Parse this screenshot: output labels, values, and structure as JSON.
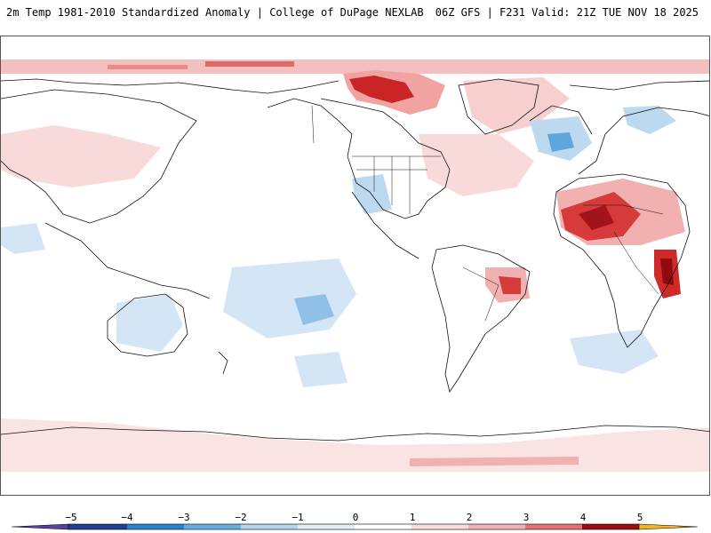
{
  "header": {
    "title_left": "2m Temp 1981-2010 Standardized Anomaly | College of DuPage NEXLAB",
    "title_right": "06Z GFS | F231 Valid: 21Z TUE NOV 18 2025"
  },
  "colorbar": {
    "labels": [
      "−5",
      "−4",
      "−3",
      "−2",
      "−1",
      "0",
      "1",
      "2",
      "3",
      "4",
      "5"
    ],
    "colors": [
      "#5b3f9e",
      "#1f3f8f",
      "#2c82c9",
      "#6aaee0",
      "#b4d4ee",
      "#e2eef8",
      "#ffffff",
      "#f9dcdc",
      "#f1b1b0",
      "#e57272",
      "#d12b2b",
      "#9e0d12",
      "#f2b31c"
    ]
  }
}
